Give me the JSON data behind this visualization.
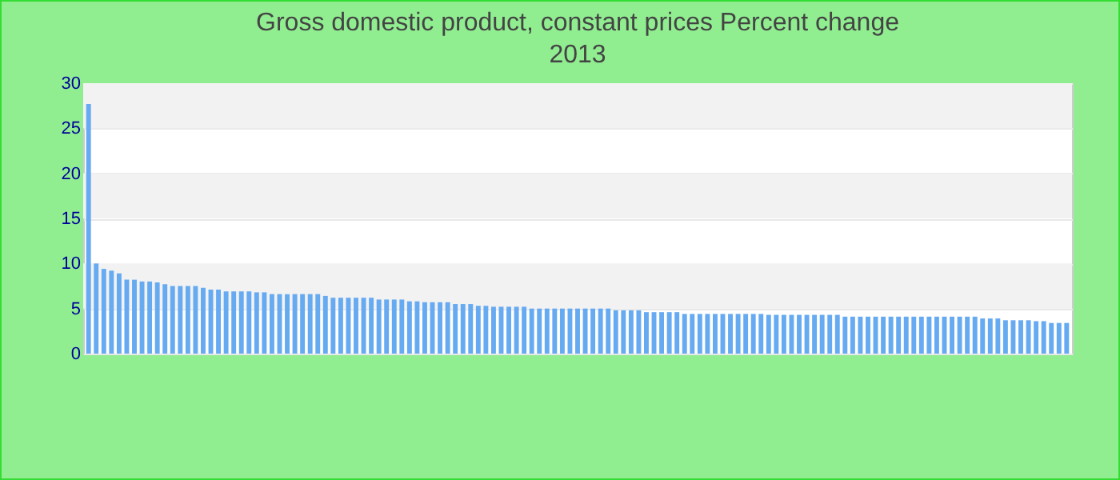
{
  "chart_data": {
    "type": "bar",
    "title": "Gross domestic product, constant prices  Percent change",
    "subtitle": "2013",
    "categories": [
      null,
      null,
      null,
      null,
      null,
      null,
      null,
      null,
      null,
      null,
      null,
      null,
      null,
      null,
      null,
      null,
      null,
      null,
      null,
      null,
      null,
      null,
      null,
      null,
      null,
      null,
      null,
      null,
      null,
      null,
      null,
      null,
      null,
      null,
      null,
      null,
      null,
      null,
      null,
      null,
      null,
      null,
      null,
      null,
      null,
      null,
      null,
      null,
      null,
      null,
      null,
      null,
      null,
      null,
      null,
      null,
      null,
      null,
      null,
      null,
      null,
      null,
      null,
      null,
      null,
      null,
      null,
      null,
      null,
      null,
      null,
      null,
      null,
      null,
      null,
      null,
      null,
      null,
      null,
      null,
      null,
      null,
      null,
      null,
      null,
      null,
      null,
      null,
      null,
      null,
      null,
      null,
      null,
      null,
      null,
      null,
      null,
      null,
      null,
      null,
      null,
      null,
      null,
      null,
      null,
      null,
      null,
      null,
      null,
      null,
      null,
      null,
      null,
      null,
      null,
      null,
      null,
      null,
      null,
      null,
      null,
      null,
      null,
      null,
      null,
      null,
      null,
      null,
      null
    ],
    "values": [
      27.7,
      10.0,
      9.4,
      9.2,
      8.9,
      8.2,
      8.2,
      8.0,
      8.0,
      7.9,
      7.7,
      7.5,
      7.5,
      7.5,
      7.5,
      7.3,
      7.1,
      7.1,
      6.9,
      6.9,
      6.9,
      6.9,
      6.8,
      6.8,
      6.6,
      6.6,
      6.6,
      6.6,
      6.6,
      6.6,
      6.6,
      6.4,
      6.2,
      6.2,
      6.2,
      6.2,
      6.2,
      6.2,
      6.0,
      6.0,
      6.0,
      6.0,
      5.8,
      5.8,
      5.7,
      5.7,
      5.7,
      5.7,
      5.5,
      5.5,
      5.5,
      5.3,
      5.3,
      5.2,
      5.2,
      5.2,
      5.2,
      5.2,
      5.0,
      5.0,
      5.0,
      5.0,
      5.0,
      5.0,
      5.0,
      5.0,
      5.0,
      5.0,
      5.0,
      4.8,
      4.8,
      4.8,
      4.8,
      4.6,
      4.6,
      4.6,
      4.6,
      4.6,
      4.4,
      4.4,
      4.4,
      4.4,
      4.4,
      4.4,
      4.4,
      4.4,
      4.4,
      4.4,
      4.4,
      4.3,
      4.3,
      4.3,
      4.3,
      4.3,
      4.3,
      4.3,
      4.3,
      4.3,
      4.3,
      4.1,
      4.1,
      4.1,
      4.1,
      4.1,
      4.1,
      4.1,
      4.1,
      4.1,
      4.1,
      4.1,
      4.1,
      4.1,
      4.1,
      4.1,
      4.1,
      4.1,
      4.1,
      3.9,
      3.9,
      3.9,
      3.7,
      3.7,
      3.7,
      3.7,
      3.6,
      3.6,
      3.4,
      3.4,
      3.4
    ],
    "color": "#66aaf2",
    "ylim": [
      0,
      30
    ],
    "yticks": [
      0,
      5,
      10,
      15,
      20,
      25,
      30
    ],
    "grid": "y",
    "tick_labels": "y"
  }
}
